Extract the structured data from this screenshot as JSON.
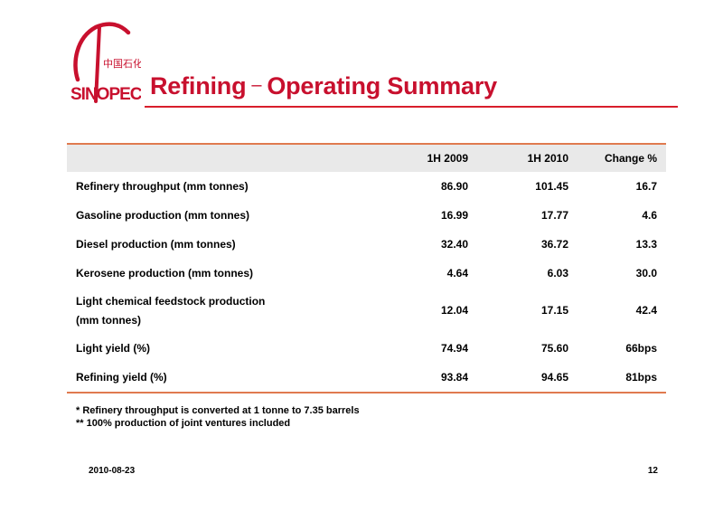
{
  "logo": {
    "brand_text": "SINOPEC",
    "chinese_text": "中国石化"
  },
  "title": {
    "main": "Refining",
    "separator": "–",
    "sub": "Operating Summary"
  },
  "table": {
    "headers": [
      "",
      "1H 2009",
      "1H 2010",
      "Change %"
    ],
    "rows": [
      {
        "label": "Refinery throughput (mm tonnes)",
        "h2009": "86.90",
        "h2010": "101.45",
        "change": "16.7"
      },
      {
        "label": "Gasoline production (mm tonnes)",
        "h2009": "16.99",
        "h2010": "17.77",
        "change": "4.6"
      },
      {
        "label": "Diesel production (mm tonnes)",
        "h2009": "32.40",
        "h2010": "36.72",
        "change": "13.3"
      },
      {
        "label": "Kerosene production (mm tonnes)",
        "h2009": "4.64",
        "h2010": "6.03",
        "change": "30.0"
      },
      {
        "label_line1": "Light chemical feedstock production",
        "label_line2": "(mm tonnes)",
        "h2009": "12.04",
        "h2010": "17.15",
        "change": "42.4"
      },
      {
        "label": "Light yield (%)",
        "h2009": "74.94",
        "h2010": "75.60",
        "change": "66bps"
      },
      {
        "label": "Refining yield (%)",
        "h2009": "93.84",
        "h2010": "94.65",
        "change": "81bps"
      }
    ]
  },
  "notes": [
    "* Refinery throughput is converted at 1 tonne to 7.35 barrels",
    "** 100% production of joint ventures  included"
  ],
  "footer": {
    "date": "2010-08-23",
    "page": "12"
  },
  "colors": {
    "brand_red": "#c8102e",
    "rule_orange": "#e07a4f",
    "header_gray": "#e9e9e9"
  }
}
